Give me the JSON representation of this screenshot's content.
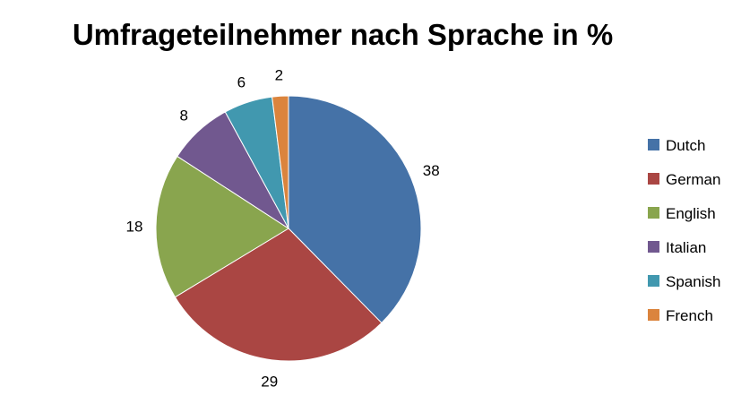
{
  "chart_data": {
    "type": "pie",
    "title": "Umfrageteilnehmer nach Sprache in %",
    "categories": [
      "Dutch",
      "German",
      "English",
      "Italian",
      "Spanish",
      "French"
    ],
    "values": [
      38,
      29,
      18,
      8,
      6,
      2
    ],
    "colors": [
      "#4572A7",
      "#AA4643",
      "#89A54E",
      "#71588F",
      "#4198AF",
      "#DB843D"
    ],
    "data_labels": [
      "38",
      "29",
      "18",
      "8",
      "6",
      "2"
    ],
    "legend_position": "right"
  }
}
